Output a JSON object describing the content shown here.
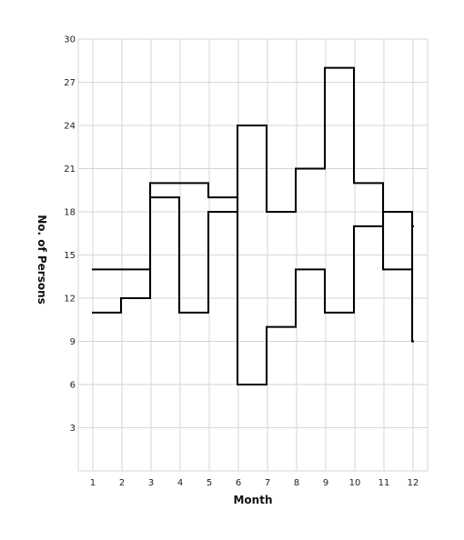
{
  "chart_data": {
    "type": "line",
    "step": true,
    "title": "",
    "xlabel": "Month",
    "ylabel": "No. of Persons",
    "x": [
      1,
      2,
      3,
      4,
      5,
      6,
      7,
      8,
      9,
      10,
      11,
      12
    ],
    "ylim": [
      0,
      30
    ],
    "yticks": [
      3,
      6,
      9,
      12,
      15,
      18,
      21,
      24,
      27,
      30
    ],
    "grid": true,
    "series": [
      {
        "values": [
          14,
          14,
          20,
          20,
          19,
          6,
          10,
          14,
          11,
          17,
          18,
          9
        ],
        "color": "#000000"
      },
      {
        "values": [
          11,
          12,
          19,
          11,
          18,
          24,
          18,
          21,
          28,
          20,
          14,
          17
        ],
        "color": "#000000"
      }
    ]
  }
}
